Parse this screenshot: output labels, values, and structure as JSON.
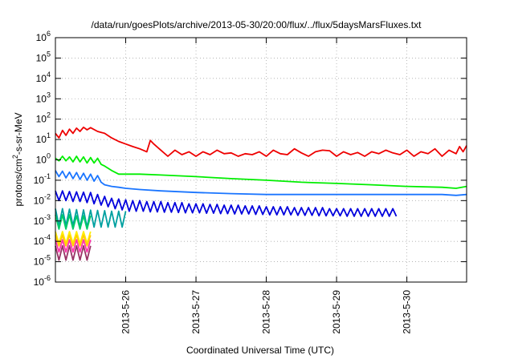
{
  "chart_data": {
    "type": "line",
    "title": "/data/run/goesPlots/archive/2013-05-30/20:00/flux/../flux/5daysMarsFluxes.txt",
    "xlabel": "Coordinated Universal Time (UTC)",
    "ylabel": {
      "base": "protons/cm",
      "sup": "2",
      "rest": "-s-sr-MeV"
    },
    "yscale": "log",
    "ylim": [
      1e-06,
      1000000.0
    ],
    "xlim": [
      0,
      5.85
    ],
    "grid": true,
    "legend": "none",
    "yticks": [
      {
        "value": 1e-06,
        "base": "10",
        "exp": "-6"
      },
      {
        "value": 1e-05,
        "base": "10",
        "exp": "-5"
      },
      {
        "value": 0.0001,
        "base": "10",
        "exp": "-4"
      },
      {
        "value": 0.001,
        "base": "10",
        "exp": "-3"
      },
      {
        "value": 0.01,
        "base": "10",
        "exp": "-2"
      },
      {
        "value": 0.1,
        "base": "10",
        "exp": "-1"
      },
      {
        "value": 1.0,
        "base": "10",
        "exp": "0"
      },
      {
        "value": 10.0,
        "base": "10",
        "exp": "1"
      },
      {
        "value": 100.0,
        "base": "10",
        "exp": "2"
      },
      {
        "value": 1000.0,
        "base": "10",
        "exp": "3"
      },
      {
        "value": 10000.0,
        "base": "10",
        "exp": "4"
      },
      {
        "value": 100000.0,
        "base": "10",
        "exp": "5"
      },
      {
        "value": 1000000.0,
        "base": "10",
        "exp": "6"
      }
    ],
    "xticks": [
      {
        "value": 1,
        "label": "2013-5-26"
      },
      {
        "value": 2,
        "label": "2013-5-27"
      },
      {
        "value": 3,
        "label": "2013-5-28"
      },
      {
        "value": 4,
        "label": "2013-5-29"
      },
      {
        "value": 5,
        "label": "2013-5-30"
      }
    ],
    "series": [
      {
        "color": "#ee0000",
        "x": [
          0,
          0.05,
          0.1,
          0.15,
          0.2,
          0.25,
          0.3,
          0.35,
          0.4,
          0.45,
          0.5,
          0.6,
          0.7,
          0.8,
          0.9,
          1.0,
          1.1,
          1.2,
          1.3,
          1.35,
          1.4,
          1.5,
          1.6,
          1.7,
          1.8,
          1.9,
          2.0,
          2.1,
          2.2,
          2.3,
          2.4,
          2.5,
          2.6,
          2.7,
          2.8,
          2.9,
          3.0,
          3.1,
          3.2,
          3.3,
          3.4,
          3.5,
          3.6,
          3.7,
          3.8,
          3.9,
          4.0,
          4.1,
          4.2,
          4.3,
          4.4,
          4.5,
          4.6,
          4.7,
          4.8,
          4.9,
          5.0,
          5.1,
          5.2,
          5.3,
          5.4,
          5.5,
          5.6,
          5.7,
          5.75,
          5.8,
          5.85
        ],
        "y": [
          20,
          12,
          28,
          16,
          32,
          20,
          36,
          25,
          40,
          30,
          38,
          25,
          20,
          12,
          8,
          6,
          4.5,
          3.5,
          2.5,
          9,
          6,
          3,
          1.5,
          3,
          1.8,
          2.5,
          1.5,
          2.5,
          1.8,
          3,
          2,
          2.2,
          1.5,
          2,
          1.8,
          2.5,
          1.5,
          3,
          2,
          1.8,
          3.5,
          2.2,
          1.5,
          2.5,
          3,
          2.8,
          1.5,
          2.5,
          1.8,
          2.3,
          1.5,
          2.5,
          2,
          3,
          2.2,
          1.8,
          3,
          1.5,
          2.5,
          2,
          3.5,
          1.5,
          3,
          2,
          4.5,
          2.5,
          5
        ]
      },
      {
        "color": "#00ee00",
        "x": [
          0,
          0.05,
          0.1,
          0.15,
          0.2,
          0.25,
          0.3,
          0.35,
          0.4,
          0.45,
          0.5,
          0.55,
          0.6,
          0.65,
          0.7,
          0.8,
          0.9,
          1.0,
          1.2,
          1.5,
          2.0,
          2.5,
          3.0,
          3.5,
          4.0,
          4.5,
          5.0,
          5.5,
          5.7,
          5.85
        ],
        "y": [
          1.2,
          0.9,
          1.5,
          0.9,
          1.4,
          0.8,
          1.5,
          0.8,
          1.4,
          0.7,
          1.3,
          0.7,
          1.2,
          0.6,
          0.5,
          0.3,
          0.2,
          0.2,
          0.2,
          0.18,
          0.15,
          0.12,
          0.1,
          0.08,
          0.07,
          0.06,
          0.05,
          0.045,
          0.04,
          0.05
        ]
      },
      {
        "color": "#1a75ff",
        "x": [
          0,
          0.05,
          0.1,
          0.15,
          0.2,
          0.25,
          0.3,
          0.35,
          0.4,
          0.45,
          0.5,
          0.55,
          0.6,
          0.65,
          0.7,
          0.8,
          0.9,
          1.0,
          1.2,
          1.5,
          2.0,
          2.5,
          3.0,
          3.5,
          4.0,
          4.5,
          5.0,
          5.5,
          5.7,
          5.85
        ],
        "y": [
          0.3,
          0.15,
          0.28,
          0.13,
          0.25,
          0.12,
          0.24,
          0.11,
          0.22,
          0.1,
          0.2,
          0.09,
          0.17,
          0.08,
          0.06,
          0.05,
          0.045,
          0.04,
          0.035,
          0.03,
          0.025,
          0.022,
          0.02,
          0.02,
          0.02,
          0.02,
          0.02,
          0.02,
          0.018,
          0.02
        ]
      },
      {
        "color": "#0000dd",
        "x": [
          0,
          0.05,
          0.1,
          0.15,
          0.2,
          0.25,
          0.3,
          0.35,
          0.4,
          0.45,
          0.5,
          0.55,
          0.6,
          0.65,
          0.7,
          0.75,
          0.8,
          0.85,
          0.9,
          0.95,
          1.0,
          1.05,
          1.1,
          1.15,
          1.2,
          1.25,
          1.3,
          1.35,
          1.4,
          1.45,
          1.5,
          1.55,
          1.6,
          1.65,
          1.7,
          1.75,
          1.8,
          1.85,
          1.9,
          1.95,
          2.0,
          2.05,
          2.1,
          2.15,
          2.2,
          2.25,
          2.3,
          2.35,
          2.4,
          2.45,
          2.5,
          2.55,
          2.6,
          2.65,
          2.7,
          2.75,
          2.8,
          2.85,
          2.9,
          2.95,
          3.0,
          3.05,
          3.1,
          3.15,
          3.2,
          3.25,
          3.3,
          3.35,
          3.4,
          3.45,
          3.5,
          3.55,
          3.6,
          3.65,
          3.7,
          3.75,
          3.8,
          3.85,
          3.9,
          3.95,
          4.0,
          4.05,
          4.1,
          4.15,
          4.2,
          4.25,
          4.3,
          4.35,
          4.4,
          4.45,
          4.5,
          4.55,
          4.6,
          4.65,
          4.7,
          4.75,
          4.8,
          4.85
        ],
        "y": [
          0.03,
          0.01,
          0.03,
          0.01,
          0.028,
          0.009,
          0.027,
          0.009,
          0.026,
          0.008,
          0.025,
          0.007,
          0.02,
          0.006,
          0.016,
          0.005,
          0.013,
          0.004,
          0.012,
          0.0035,
          0.011,
          0.003,
          0.01,
          0.003,
          0.01,
          0.003,
          0.009,
          0.0028,
          0.009,
          0.0028,
          0.009,
          0.0027,
          0.008,
          0.0027,
          0.008,
          0.0026,
          0.008,
          0.0025,
          0.007,
          0.0025,
          0.007,
          0.0025,
          0.007,
          0.0024,
          0.0065,
          0.0024,
          0.0065,
          0.0023,
          0.006,
          0.0023,
          0.006,
          0.0022,
          0.006,
          0.0022,
          0.0055,
          0.0022,
          0.0055,
          0.0021,
          0.0055,
          0.0021,
          0.005,
          0.002,
          0.005,
          0.002,
          0.005,
          0.002,
          0.005,
          0.002,
          0.0045,
          0.0019,
          0.0045,
          0.0019,
          0.0045,
          0.0019,
          0.0045,
          0.0018,
          0.0045,
          0.0018,
          0.004,
          0.0018,
          0.004,
          0.0018,
          0.004,
          0.0017,
          0.004,
          0.0017,
          0.004,
          0.0017,
          0.004,
          0.0017,
          0.004,
          0.0017,
          0.004,
          0.0017,
          0.004,
          0.0017,
          0.004,
          0.0017
        ]
      },
      {
        "color": "#00a0a0",
        "x": [
          0,
          0.05,
          0.1,
          0.15,
          0.2,
          0.25,
          0.3,
          0.35,
          0.4,
          0.45,
          0.5,
          0.55,
          0.6,
          0.65,
          0.7,
          0.75,
          0.8,
          0.85,
          0.9,
          0.95,
          1.0
        ],
        "y": [
          0.004,
          0.0006,
          0.004,
          0.0006,
          0.0038,
          0.0006,
          0.0036,
          0.0005,
          0.0035,
          0.0005,
          0.0034,
          0.0005,
          0.0033,
          0.0005,
          0.0032,
          0.0005,
          0.003,
          0.0005,
          0.003,
          0.0005,
          0.003
        ]
      },
      {
        "color": "#00cc66",
        "x": [
          0,
          0.05,
          0.1,
          0.15,
          0.2,
          0.25,
          0.3,
          0.35,
          0.4,
          0.45,
          0.5
        ],
        "y": [
          0.002,
          0.0004,
          0.002,
          0.0004,
          0.002,
          0.0004,
          0.0018,
          0.0004,
          0.0018,
          0.0004,
          0.0018
        ]
      },
      {
        "color": "#ffee00",
        "x": [
          0,
          0.05,
          0.1,
          0.15,
          0.2,
          0.25,
          0.3,
          0.35,
          0.4,
          0.45,
          0.5
        ],
        "y": [
          0.0003,
          8e-05,
          0.0003,
          8e-05,
          0.0003,
          8e-05,
          0.0003,
          8e-05,
          0.0003,
          8e-05,
          0.0003
        ]
      },
      {
        "color": "#ffcc00",
        "x": [
          0,
          0.05,
          0.1,
          0.15,
          0.2,
          0.25,
          0.3,
          0.35,
          0.4,
          0.45,
          0.5
        ],
        "y": [
          0.0002,
          6e-05,
          0.0002,
          6e-05,
          0.0002,
          6e-05,
          0.0002,
          6e-05,
          0.0002,
          6e-05,
          0.0002
        ]
      },
      {
        "color": "#ff33aa",
        "x": [
          0,
          0.05,
          0.1,
          0.15,
          0.2,
          0.25,
          0.3,
          0.35,
          0.4,
          0.45,
          0.5
        ],
        "y": [
          0.00012,
          3e-05,
          0.00012,
          3e-05,
          0.00012,
          3e-05,
          0.00012,
          3e-05,
          0.00012,
          3e-05,
          0.00012
        ]
      },
      {
        "color": "#993366",
        "x": [
          0,
          0.05,
          0.1,
          0.15,
          0.2,
          0.25,
          0.3,
          0.35,
          0.4,
          0.45,
          0.5
        ],
        "y": [
          6e-05,
          1.2e-05,
          6e-05,
          1.2e-05,
          6e-05,
          1.2e-05,
          6e-05,
          1.2e-05,
          6e-05,
          1.2e-05,
          6e-05
        ]
      }
    ]
  }
}
